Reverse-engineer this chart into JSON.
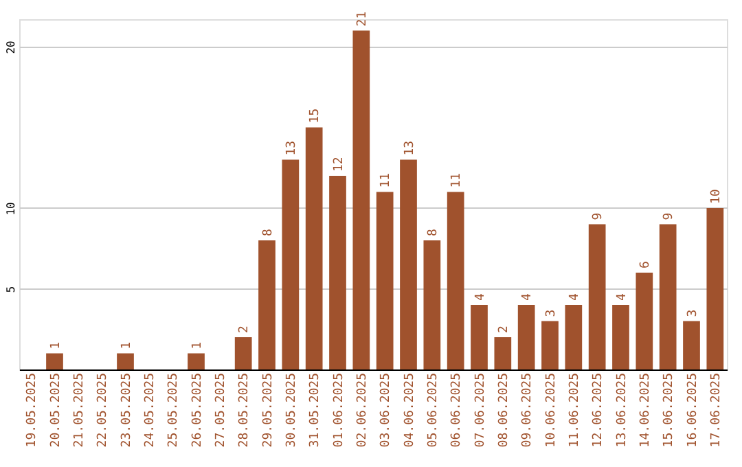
{
  "chart_data": {
    "type": "bar",
    "categories": [
      "19.05.2025",
      "20.05.2025",
      "21.05.2025",
      "22.05.2025",
      "23.05.2025",
      "24.05.2025",
      "25.05.2025",
      "26.05.2025",
      "27.05.2025",
      "28.05.2025",
      "29.05.2025",
      "30.05.2025",
      "31.05.2025",
      "01.06.2025",
      "02.06.2025",
      "03.06.2025",
      "04.06.2025",
      "05.06.2025",
      "06.06.2025",
      "07.06.2025",
      "08.06.2025",
      "09.06.2025",
      "10.06.2025",
      "11.06.2025",
      "12.06.2025",
      "13.06.2025",
      "14.06.2025",
      "15.06.2025",
      "16.06.2025",
      "17.06.2025"
    ],
    "values": [
      0,
      1,
      0,
      0,
      1,
      0,
      0,
      1,
      0,
      2,
      8,
      13,
      15,
      12,
      21,
      11,
      13,
      8,
      11,
      4,
      2,
      4,
      3,
      4,
      9,
      4,
      6,
      9,
      3,
      10
    ],
    "value_labels": [
      null,
      "1",
      null,
      null,
      "1",
      null,
      null,
      "1",
      null,
      "2",
      "8",
      "13",
      "15",
      "12",
      "21",
      "11",
      "13",
      "8",
      "11",
      "4",
      "2",
      "4",
      "3",
      "4",
      "9",
      "4",
      "6",
      "9",
      "3",
      "10"
    ],
    "color": "#a0522d",
    "ylim": [
      0,
      21.7
    ],
    "yticks": [
      5,
      10,
      20
    ],
    "grid": "y"
  }
}
